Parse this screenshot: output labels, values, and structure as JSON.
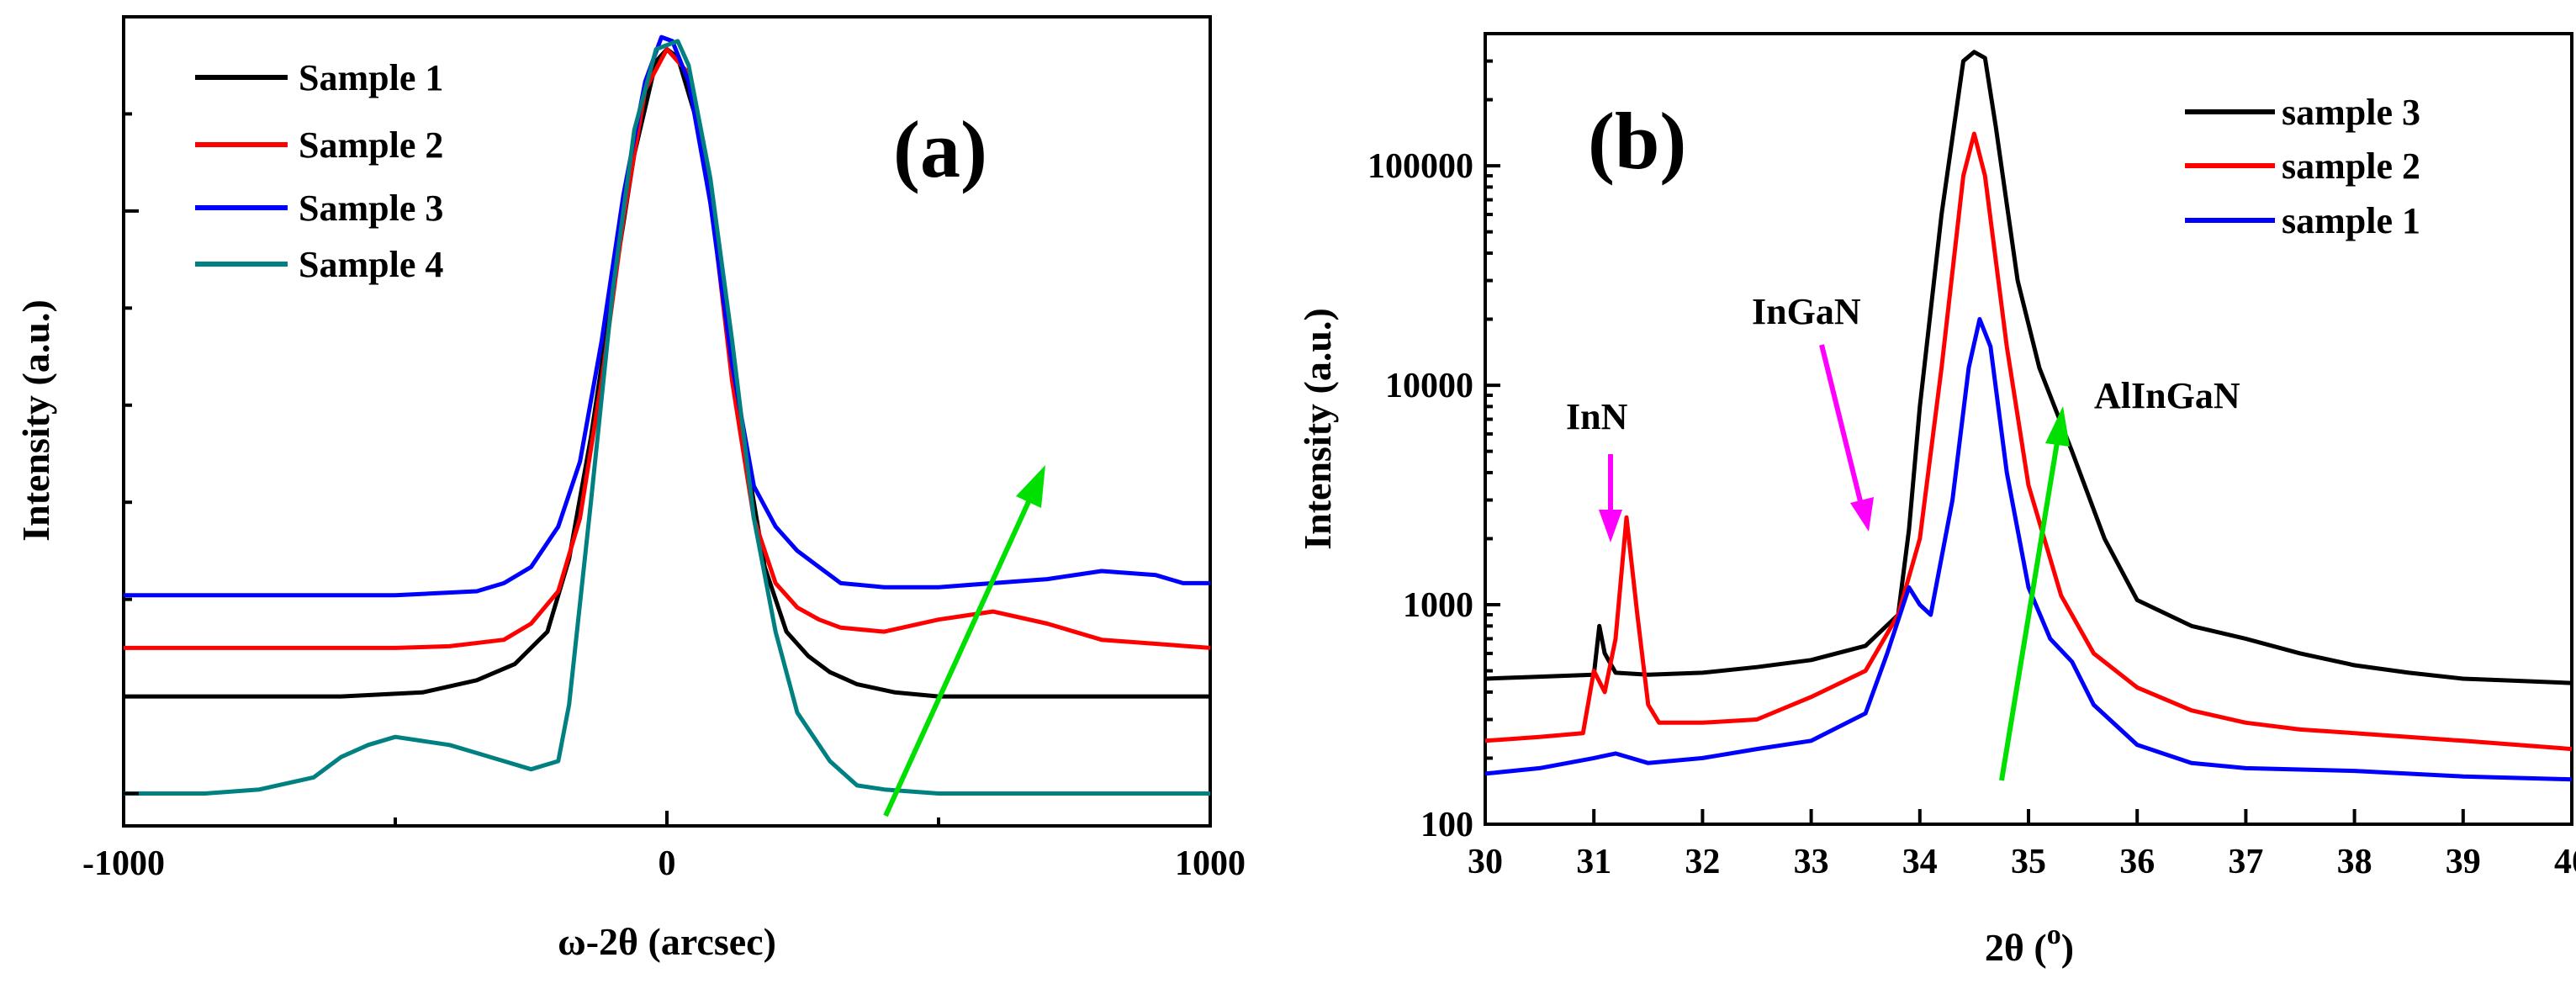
{
  "chart_data": [
    {
      "panel": "(a)",
      "type": "line",
      "xlabel": "ω-2θ (arcsec)",
      "ylabel": "Intensity (a.u.)",
      "xlim": [
        -1000,
        1000
      ],
      "ylim": [
        0,
        100
      ],
      "xticks": [
        "-1000",
        "0",
        "1000"
      ],
      "legend_position": "top-left",
      "series": [
        {
          "name": "Sample 1",
          "color": "#000000",
          "x": [
            -1000,
            -600,
            -450,
            -350,
            -280,
            -220,
            -180,
            -140,
            -100,
            -60,
            -20,
            0,
            20,
            60,
            100,
            140,
            180,
            220,
            260,
            300,
            350,
            420,
            500,
            600,
            800,
            1000
          ],
          "y": [
            16,
            16,
            16.5,
            18,
            20,
            24,
            33,
            48,
            66,
            83,
            94.5,
            96,
            95,
            86,
            68,
            48,
            32,
            24,
            21,
            19,
            17.5,
            16.5,
            16,
            16,
            16,
            16
          ]
        },
        {
          "name": "Sample 2",
          "color": "#ff0000",
          "x": [
            -1000,
            -500,
            -400,
            -300,
            -250,
            -200,
            -160,
            -120,
            -80,
            -40,
            0,
            40,
            80,
            120,
            160,
            200,
            240,
            280,
            320,
            400,
            500,
            600,
            700,
            800,
            900,
            1000
          ],
          "y": [
            22,
            22,
            22.2,
            23,
            25,
            29,
            38,
            55,
            75,
            91,
            96,
            93,
            78,
            55,
            38,
            30,
            27,
            25.5,
            24.5,
            24,
            25.5,
            26.5,
            25,
            23,
            22.5,
            22
          ]
        },
        {
          "name": "Sample 3",
          "color": "#0000ff",
          "x": [
            -1000,
            -500,
            -350,
            -300,
            -250,
            -200,
            -160,
            -120,
            -80,
            -40,
            -10,
            10,
            40,
            80,
            120,
            160,
            200,
            240,
            280,
            320,
            400,
            500,
            600,
            700,
            800,
            900,
            950,
            1000
          ],
          "y": [
            28.5,
            28.5,
            29,
            30,
            32,
            37,
            45,
            60,
            78,
            92,
            97.5,
            97,
            92,
            77,
            57,
            42,
            37,
            34,
            32,
            30,
            29.5,
            29.5,
            30,
            30.5,
            31.5,
            31,
            30,
            30
          ]
        },
        {
          "name": "Sample 4",
          "color": "#008080",
          "x": [
            -1000,
            -850,
            -750,
            -650,
            -600,
            -550,
            -500,
            -450,
            -400,
            -350,
            -300,
            -250,
            -200,
            -180,
            -140,
            -100,
            -60,
            -20,
            20,
            40,
            80,
            120,
            160,
            200,
            240,
            300,
            350,
            400,
            500,
            700,
            1000
          ],
          "y": [
            4,
            4,
            4.5,
            6,
            8.5,
            10,
            11,
            10.5,
            10,
            9,
            8,
            7,
            8,
            15,
            40,
            66,
            86,
            96,
            97,
            94,
            80,
            60,
            38,
            24,
            14,
            8,
            5,
            4.5,
            4,
            4,
            4
          ]
        }
      ]
    },
    {
      "panel": "(b)",
      "type": "line",
      "xlabel": "2θ (o)",
      "ylabel": "Intensity (a.u.)",
      "xlim": [
        30,
        40
      ],
      "ylim": [
        100,
        400000
      ],
      "yscale": "log",
      "xticks": [
        "30",
        "31",
        "32",
        "33",
        "34",
        "35",
        "36",
        "37",
        "38",
        "39",
        "40"
      ],
      "yticks": [
        "100",
        "1000",
        "10000",
        "100000"
      ],
      "legend_position": "top-right",
      "annotations": [
        "InN",
        "InGaN",
        "AlInGaN"
      ],
      "series": [
        {
          "name": "sample 3",
          "color": "#000000",
          "x": [
            30,
            30.5,
            31,
            31.05,
            31.1,
            31.2,
            31.5,
            32,
            32.5,
            33,
            33.5,
            33.8,
            33.9,
            34.0,
            34.2,
            34.4,
            34.5,
            34.6,
            34.7,
            34.9,
            35.1,
            35.4,
            35.7,
            36,
            36.5,
            37,
            37.5,
            38,
            38.5,
            39,
            39.5,
            40
          ],
          "y": [
            460,
            470,
            480,
            800,
            600,
            490,
            480,
            490,
            520,
            560,
            650,
            900,
            2200,
            8000,
            60000,
            300000,
            330000,
            310000,
            150000,
            30000,
            12000,
            5000,
            2000,
            1050,
            800,
            700,
            600,
            530,
            490,
            460,
            450,
            440
          ]
        },
        {
          "name": "sample 2",
          "color": "#ff0000",
          "x": [
            30,
            30.5,
            30.9,
            31.0,
            31.1,
            31.2,
            31.3,
            31.4,
            31.5,
            31.6,
            32,
            32.5,
            33,
            33.5,
            33.8,
            34.0,
            34.2,
            34.4,
            34.5,
            34.6,
            34.8,
            35,
            35.3,
            35.6,
            36,
            36.5,
            37,
            37.5,
            38,
            39,
            40
          ],
          "y": [
            240,
            250,
            260,
            500,
            400,
            700,
            2500,
            900,
            350,
            290,
            290,
            300,
            380,
            500,
            900,
            2000,
            12000,
            90000,
            140000,
            90000,
            15000,
            3500,
            1100,
            600,
            420,
            330,
            290,
            270,
            260,
            240,
            220
          ]
        },
        {
          "name": "sample 1",
          "color": "#0000ff",
          "x": [
            30,
            30.5,
            31,
            31.2,
            31.5,
            32,
            32.5,
            33,
            33.5,
            33.7,
            33.9,
            34.0,
            34.1,
            34.3,
            34.45,
            34.55,
            34.65,
            34.8,
            35,
            35.2,
            35.4,
            35.6,
            36,
            36.5,
            37,
            38,
            39,
            40
          ],
          "y": [
            170,
            180,
            200,
            210,
            190,
            200,
            220,
            240,
            320,
            600,
            1200,
            1000,
            900,
            3000,
            12000,
            20000,
            15000,
            4000,
            1200,
            700,
            550,
            350,
            230,
            190,
            180,
            175,
            165,
            160
          ]
        }
      ]
    }
  ]
}
